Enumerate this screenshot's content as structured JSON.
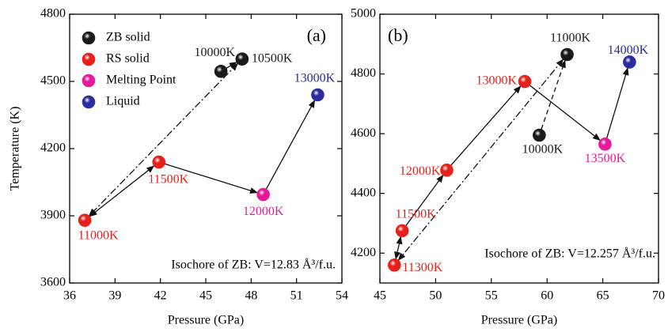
{
  "chart_data": [
    {
      "type": "scatter",
      "xlabel": "Pressure (GPa)",
      "ylabel": "Temperature (K)",
      "xlim": [
        36,
        54
      ],
      "xticks": [
        36,
        39,
        42,
        45,
        48,
        51,
        54
      ],
      "ylim": [
        3600,
        4800
      ],
      "yticks": [
        3600,
        3900,
        4200,
        4500,
        4800
      ],
      "legend": "upper left",
      "series": [
        {
          "name": "ZB solid",
          "color": "#1a1a1a",
          "x": [
            46.0,
            47.4
          ],
          "values": [
            4545,
            4600
          ],
          "labels": [
            "10000K",
            "10500K"
          ]
        },
        {
          "name": "RS solid",
          "color": "#e8201c",
          "x": [
            37.0,
            41.9
          ],
          "values": [
            3880,
            4140
          ],
          "labels": [
            "11000K",
            "11500K"
          ]
        },
        {
          "name": "Melting Point",
          "color": "#e6199b",
          "x": [
            48.8
          ],
          "values": [
            3995
          ],
          "labels": [
            "12000K"
          ]
        },
        {
          "name": "Liquid",
          "color": "#2b2b9e",
          "x": [
            52.4
          ],
          "values": [
            4440
          ],
          "labels": [
            "13000K"
          ]
        }
      ],
      "annotations": [
        "(a)",
        "Isochore of ZB: V=12.83 Å³/f.u."
      ]
    },
    {
      "type": "scatter",
      "xlabel": "Pressure (GPa)",
      "xlim": [
        45,
        70
      ],
      "xticks": [
        45,
        50,
        55,
        60,
        65,
        70
      ],
      "ylim": [
        4100,
        5000
      ],
      "yticks": [
        4200,
        4400,
        4600,
        4800,
        5000
      ],
      "series": [
        {
          "color": "#1a1a1a",
          "x": [
            59.3,
            61.8
          ],
          "values": [
            4595,
            4865
          ],
          "labels": [
            "10000K",
            "11000K"
          ]
        },
        {
          "color": "#e8201c",
          "x": [
            46.3,
            47.0,
            51.0,
            58.0
          ],
          "values": [
            4160,
            4275,
            4478,
            4775
          ],
          "labels": [
            "11300K",
            "11500K",
            "12000K",
            "13000K"
          ]
        },
        {
          "color": "#e6199b",
          "x": [
            65.2
          ],
          "values": [
            4565
          ],
          "labels": [
            "13500K"
          ]
        },
        {
          "color": "#2b2b9e",
          "x": [
            67.4
          ],
          "values": [
            4840
          ],
          "labels": [
            "14000K"
          ]
        }
      ],
      "annotations": [
        "(b)",
        "Isochore of ZB: V=12.257 Å³/f.u."
      ]
    }
  ]
}
